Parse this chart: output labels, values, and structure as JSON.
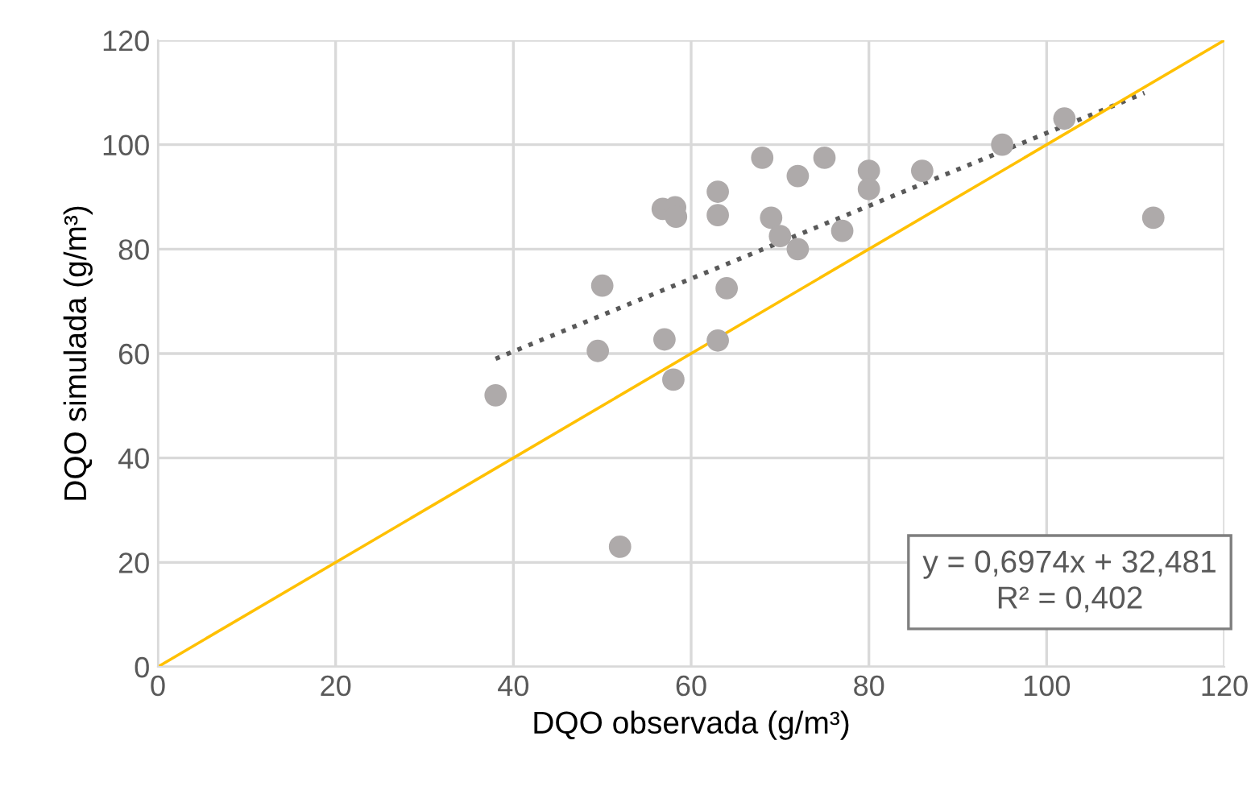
{
  "chart_data": {
    "type": "scatter",
    "xlabel": "DQO observada (g/m³)",
    "ylabel": "DQO simulada (g/m³)",
    "xlim": [
      0,
      120
    ],
    "ylim": [
      0,
      120
    ],
    "xticks": [
      0,
      20,
      40,
      60,
      80,
      100,
      120
    ],
    "yticks": [
      0,
      20,
      40,
      60,
      80,
      100,
      120
    ],
    "grid": true,
    "legend": false,
    "series": [
      {
        "color": "#aeaaaa",
        "marker": "circle",
        "x": [
          38,
          49.5,
          50,
          52,
          57,
          56.8,
          58.2,
          58.3,
          58,
          63,
          63,
          63,
          64,
          68,
          69,
          70,
          72,
          72,
          75,
          77,
          80,
          80,
          86,
          95,
          102,
          112
        ],
        "values": [
          52,
          60.5,
          73,
          23,
          62.7,
          87.7,
          88,
          86.2,
          55,
          91,
          86.5,
          62.5,
          72.5,
          97.5,
          86,
          82.5,
          80,
          94,
          97.5,
          83.5,
          95,
          91.5,
          95,
          100,
          105,
          86
        ]
      },
      {
        "type": "line",
        "color": "#595959",
        "line_style": "dotted",
        "x": [
          38,
          111
        ],
        "values": [
          59.0,
          109.9
        ]
      },
      {
        "type": "line",
        "color": "#ffc000",
        "line_style": "solid",
        "x": [
          0,
          120
        ],
        "values": [
          0,
          120
        ]
      }
    ],
    "annotations": [
      "y = 0,6974x + 32,481\nR² = 0,402"
    ]
  }
}
